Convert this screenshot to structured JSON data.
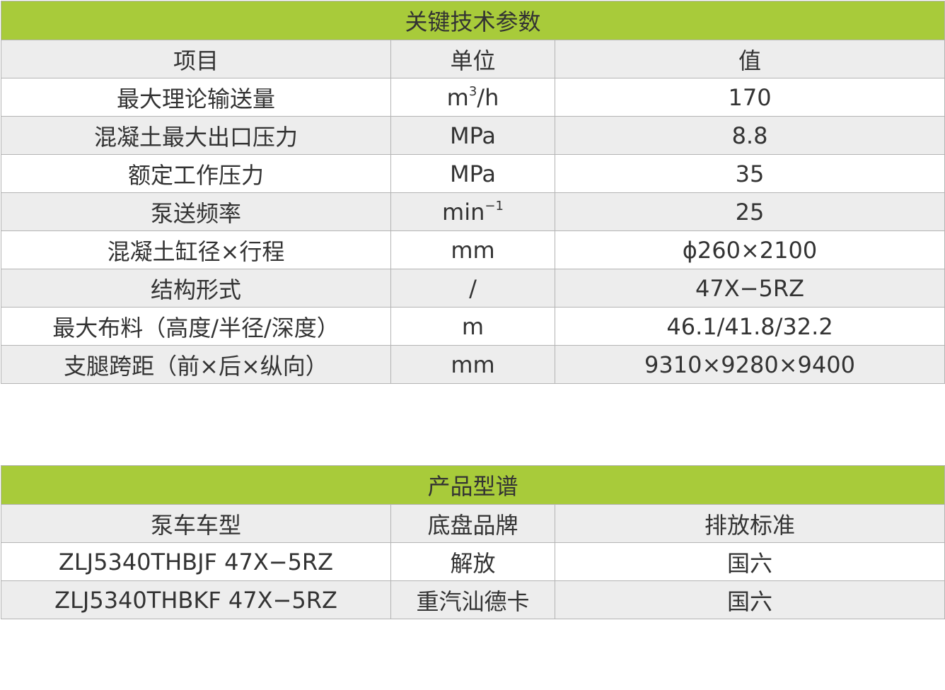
{
  "params_table": {
    "title": "关键技术参数",
    "headers": [
      "项目",
      "单位",
      "值"
    ],
    "rows": [
      {
        "item": "最大理论输送量",
        "unit": "m",
        "unit_sup": "3",
        "unit_suffix": "/h",
        "value": "170"
      },
      {
        "item": "混凝土最大出口压力",
        "unit": "MPa",
        "unit_sup": "",
        "unit_suffix": "",
        "value": "8.8"
      },
      {
        "item": "额定工作压力",
        "unit": "MPa",
        "unit_sup": "",
        "unit_suffix": "",
        "value": "35"
      },
      {
        "item": "泵送频率",
        "unit": "min",
        "unit_sup": "−1",
        "unit_suffix": "",
        "value": "25"
      },
      {
        "item": "混凝土缸径×行程",
        "unit": "mm",
        "unit_sup": "",
        "unit_suffix": "",
        "value": "ϕ260×2100"
      },
      {
        "item": "结构形式",
        "unit": "/",
        "unit_sup": "",
        "unit_suffix": "",
        "value": "47X−5RZ"
      },
      {
        "item": "最大布料（高度/半径/深度）",
        "unit": "m",
        "unit_sup": "",
        "unit_suffix": "",
        "value": "46.1/41.8/32.2"
      },
      {
        "item": "支腿跨距（前×后×纵向）",
        "unit": "mm",
        "unit_sup": "",
        "unit_suffix": "",
        "value": "9310×9280×9400"
      }
    ]
  },
  "models_table": {
    "title": "产品型谱",
    "headers": [
      "泵车车型",
      "底盘品牌",
      "排放标准"
    ],
    "rows": [
      {
        "model": "ZLJ5340THBJF 47X−5RZ",
        "chassis": "解放",
        "emission": "国六"
      },
      {
        "model": "ZLJ5340THBKF 47X−5RZ",
        "chassis": "重汽汕德卡",
        "emission": "国六"
      }
    ]
  },
  "colors": {
    "header_green": "#a8cb3a",
    "header_gray": "#ededed",
    "border": "#b4b4b4",
    "text": "#333333"
  }
}
